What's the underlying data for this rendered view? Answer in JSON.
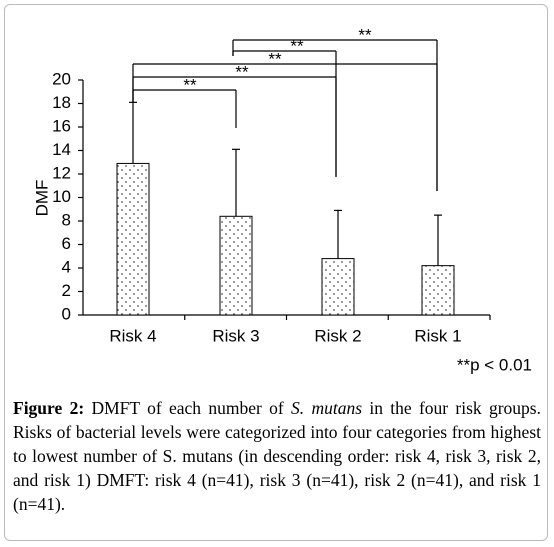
{
  "chart_data": {
    "type": "bar",
    "y_label": "DMF",
    "categories": [
      "Risk 4",
      "Risk 3",
      "Risk 2",
      "Risk 1"
    ],
    "values": [
      12.9,
      8.4,
      4.8,
      4.2
    ],
    "errors": [
      5.2,
      5.7,
      4.1,
      4.3
    ],
    "ylim": [
      0,
      20
    ],
    "yticks": [
      0,
      2,
      4,
      6,
      8,
      10,
      12,
      14,
      16,
      18,
      20
    ],
    "significance": [
      "**",
      "**",
      "**",
      "**",
      "**"
    ],
    "footnote": "**p < 0.01"
  },
  "caption": {
    "label": "Figure 2:",
    "parts": [
      " DMFT of each number of ",
      "S. mutans",
      " in the four risk groups. Risks of bacterial levels were categorized into four categories from highest to lowest number of S. mutans (in descending order: risk 4, risk 3, risk 2, and risk 1) DMFT: risk 4 (n=41), risk 3 (n=41), risk 2 (n=41), and risk 1 (n=41)."
    ]
  }
}
